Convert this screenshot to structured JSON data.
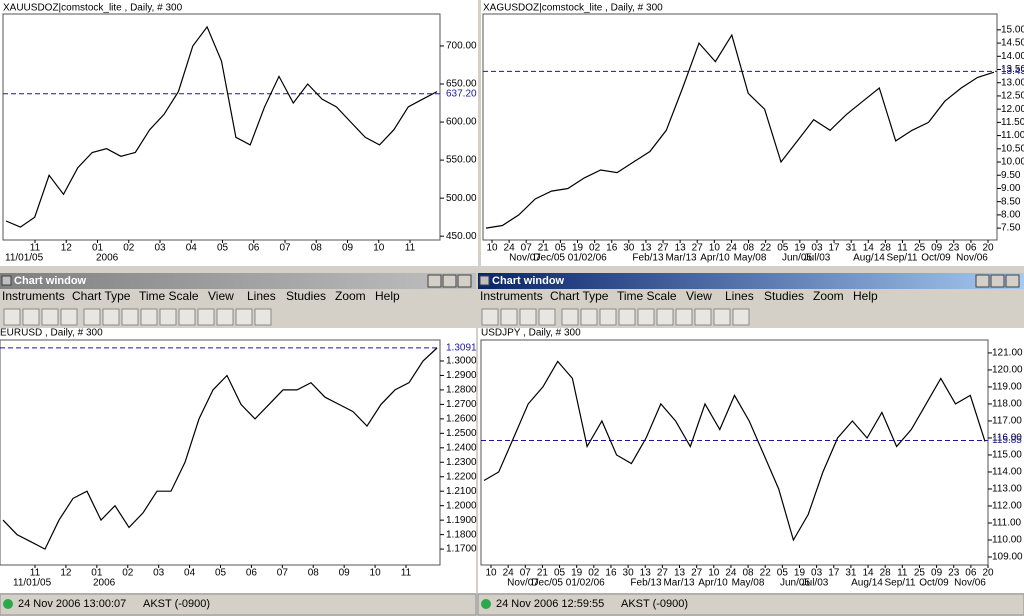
{
  "windows": [
    {
      "title": "Chart window",
      "menu": [
        "Instruments",
        "Chart Type",
        "Time Scale",
        "View",
        "Lines",
        "Studies",
        "Zoom",
        "Help"
      ],
      "status_time": "24 Nov 2006 13:00:07",
      "status_zone": "AKST (-0900)"
    },
    {
      "title": "Chart window",
      "menu": [
        "Instruments",
        "Chart Type",
        "Time Scale",
        "View",
        "Lines",
        "Studies",
        "Zoom",
        "Help"
      ],
      "status_time": "24 Nov 2006 12:59:55",
      "status_zone": "AKST (-0900)"
    }
  ],
  "chart_data": [
    {
      "type": "line",
      "title": "XAUUSDOZ|comstock_lite , Daily, # 300",
      "color": "#000000",
      "values": [
        470,
        462,
        475,
        530,
        505,
        540,
        560,
        565,
        555,
        560,
        590,
        610,
        640,
        700,
        725,
        680,
        580,
        570,
        620,
        660,
        625,
        650,
        630,
        620,
        600,
        580,
        570,
        590,
        620,
        630,
        640
      ],
      "ylim": [
        445,
        742
      ],
      "yticks": [
        {
          "value": 700,
          "label": "700.00"
        },
        {
          "value": 650,
          "label": "650.00"
        },
        {
          "value": 600,
          "label": "600.00"
        },
        {
          "value": 550,
          "label": "550.00"
        },
        {
          "value": 500,
          "label": "500.00"
        },
        {
          "value": 450,
          "label": "450.00"
        }
      ],
      "reference": {
        "value": 637.2,
        "label": "637.20"
      },
      "xtick_labels": [
        "11",
        "12",
        "01",
        "02",
        "03",
        "04",
        "05",
        "06",
        "07",
        "08",
        "09",
        "10",
        "11"
      ],
      "xtick_sublabels": [
        "11/01/05",
        "2006"
      ]
    },
    {
      "type": "line",
      "title": "XAGUSDOZ|comstock_lite , Daily, # 300",
      "color": "#000000",
      "values": [
        7.5,
        7.6,
        8.0,
        8.6,
        8.9,
        9.0,
        9.4,
        9.7,
        9.6,
        10.0,
        10.4,
        11.2,
        12.8,
        14.5,
        13.8,
        14.8,
        12.6,
        12.0,
        10.0,
        10.8,
        11.6,
        11.2,
        11.8,
        12.3,
        12.8,
        10.8,
        11.2,
        11.5,
        12.3,
        12.8,
        13.2,
        13.4
      ],
      "ylim": [
        7.05,
        15.6
      ],
      "yticks": [
        {
          "value": 15,
          "label": "15.00"
        },
        {
          "value": 14.5,
          "label": "14.50"
        },
        {
          "value": 14,
          "label": "14.00"
        },
        {
          "value": 13.5,
          "label": "13.50"
        },
        {
          "value": 13,
          "label": "13.00"
        },
        {
          "value": 12.5,
          "label": "12.50"
        },
        {
          "value": 12,
          "label": "12.00"
        },
        {
          "value": 11.5,
          "label": "11.50"
        },
        {
          "value": 11,
          "label": "11.00"
        },
        {
          "value": 10.5,
          "label": "10.50"
        },
        {
          "value": 10,
          "label": "10.00"
        },
        {
          "value": 9.5,
          "label": "9.50"
        },
        {
          "value": 9,
          "label": "9.00"
        },
        {
          "value": 8.5,
          "label": "8.50"
        },
        {
          "value": 8,
          "label": "8.00"
        },
        {
          "value": 7.5,
          "label": "7.50"
        }
      ],
      "reference": {
        "value": 13.43,
        "label": "13.43"
      },
      "xtick_labels": [
        "10",
        "24",
        "07",
        "21",
        "05",
        "19",
        "02",
        "16",
        "30",
        "13",
        "27",
        "13",
        "27",
        "10",
        "24",
        "08",
        "22",
        "05",
        "19",
        "03",
        "17",
        "31",
        "14",
        "28",
        "11",
        "25",
        "09",
        "23",
        "06",
        "20"
      ],
      "xtick_sublabels": [
        "Nov/07",
        "Dec/05 01/02/06",
        "Feb/13",
        "Mar/13",
        "Apr/10",
        "May/08",
        "Jun/05",
        "Jul/03",
        "Aug/14",
        "Sep/11",
        "Oct/09",
        "Nov/06"
      ]
    },
    {
      "type": "line",
      "title": "EURUSD , Daily, # 300",
      "color": "#000000",
      "values": [
        1.19,
        1.18,
        1.175,
        1.17,
        1.19,
        1.205,
        1.21,
        1.19,
        1.2,
        1.185,
        1.195,
        1.21,
        1.21,
        1.23,
        1.26,
        1.28,
        1.29,
        1.27,
        1.26,
        1.27,
        1.28,
        1.28,
        1.285,
        1.275,
        1.27,
        1.265,
        1.255,
        1.27,
        1.28,
        1.285,
        1.3,
        1.309
      ],
      "ylim": [
        1.159,
        1.3145
      ],
      "yticks": [
        {
          "value": 1.3,
          "label": "1.3000"
        },
        {
          "value": 1.29,
          "label": "1.2900"
        },
        {
          "value": 1.28,
          "label": "1.2800"
        },
        {
          "value": 1.27,
          "label": "1.2700"
        },
        {
          "value": 1.26,
          "label": "1.2600"
        },
        {
          "value": 1.25,
          "label": "1.2500"
        },
        {
          "value": 1.24,
          "label": "1.2400"
        },
        {
          "value": 1.23,
          "label": "1.2300"
        },
        {
          "value": 1.22,
          "label": "1.2200"
        },
        {
          "value": 1.21,
          "label": "1.2100"
        },
        {
          "value": 1.2,
          "label": "1.2000"
        },
        {
          "value": 1.19,
          "label": "1.1900"
        },
        {
          "value": 1.18,
          "label": "1.1800"
        },
        {
          "value": 1.17,
          "label": "1.1700"
        }
      ],
      "reference": {
        "value": 1.3091,
        "label": "1.3091"
      },
      "xtick_labels": [
        "11",
        "12",
        "01",
        "02",
        "03",
        "04",
        "05",
        "06",
        "07",
        "08",
        "09",
        "10",
        "11"
      ],
      "xtick_sublabels": [
        "11/01/05",
        "2006"
      ]
    },
    {
      "type": "line",
      "title": "USDJPY , Daily, # 300",
      "color": "#000000",
      "values": [
        113.5,
        114,
        116,
        118,
        119,
        120.5,
        119.5,
        115.5,
        117,
        115,
        114.5,
        116,
        118,
        117,
        115.5,
        118,
        116.5,
        118.5,
        117,
        115,
        113,
        110,
        111.5,
        114,
        116,
        117,
        116,
        117.5,
        115.5,
        116.5,
        118,
        119.5,
        118,
        118.5,
        115.8
      ],
      "ylim": [
        108.53,
        121.76
      ],
      "yticks": [
        {
          "value": 121,
          "label": "121.00"
        },
        {
          "value": 120,
          "label": "120.00"
        },
        {
          "value": 119,
          "label": "119.00"
        },
        {
          "value": 118,
          "label": "118.00"
        },
        {
          "value": 117,
          "label": "117.00"
        },
        {
          "value": 116,
          "label": "116.00"
        },
        {
          "value": 115,
          "label": "115.00"
        },
        {
          "value": 114,
          "label": "114.00"
        },
        {
          "value": 113,
          "label": "113.00"
        },
        {
          "value": 112,
          "label": "112.00"
        },
        {
          "value": 111,
          "label": "111.00"
        },
        {
          "value": 110,
          "label": "110.00"
        },
        {
          "value": 109,
          "label": "109.00"
        }
      ],
      "reference": {
        "value": 115.85,
        "label": "115.85"
      },
      "xtick_labels": [
        "10",
        "24",
        "07",
        "21",
        "05",
        "19",
        "02",
        "16",
        "30",
        "13",
        "27",
        "13",
        "27",
        "10",
        "24",
        "08",
        "22",
        "05",
        "19",
        "03",
        "17",
        "31",
        "14",
        "28",
        "11",
        "25",
        "09",
        "23",
        "06",
        "20"
      ],
      "xtick_sublabels": [
        "Nov/07",
        "Dec/05 01/02/06",
        "Feb/13",
        "Mar/13",
        "Apr/10",
        "May/08",
        "Jun/05",
        "Jul/03",
        "Aug/14",
        "Sep/11",
        "Oct/09",
        "Nov/06"
      ]
    }
  ]
}
